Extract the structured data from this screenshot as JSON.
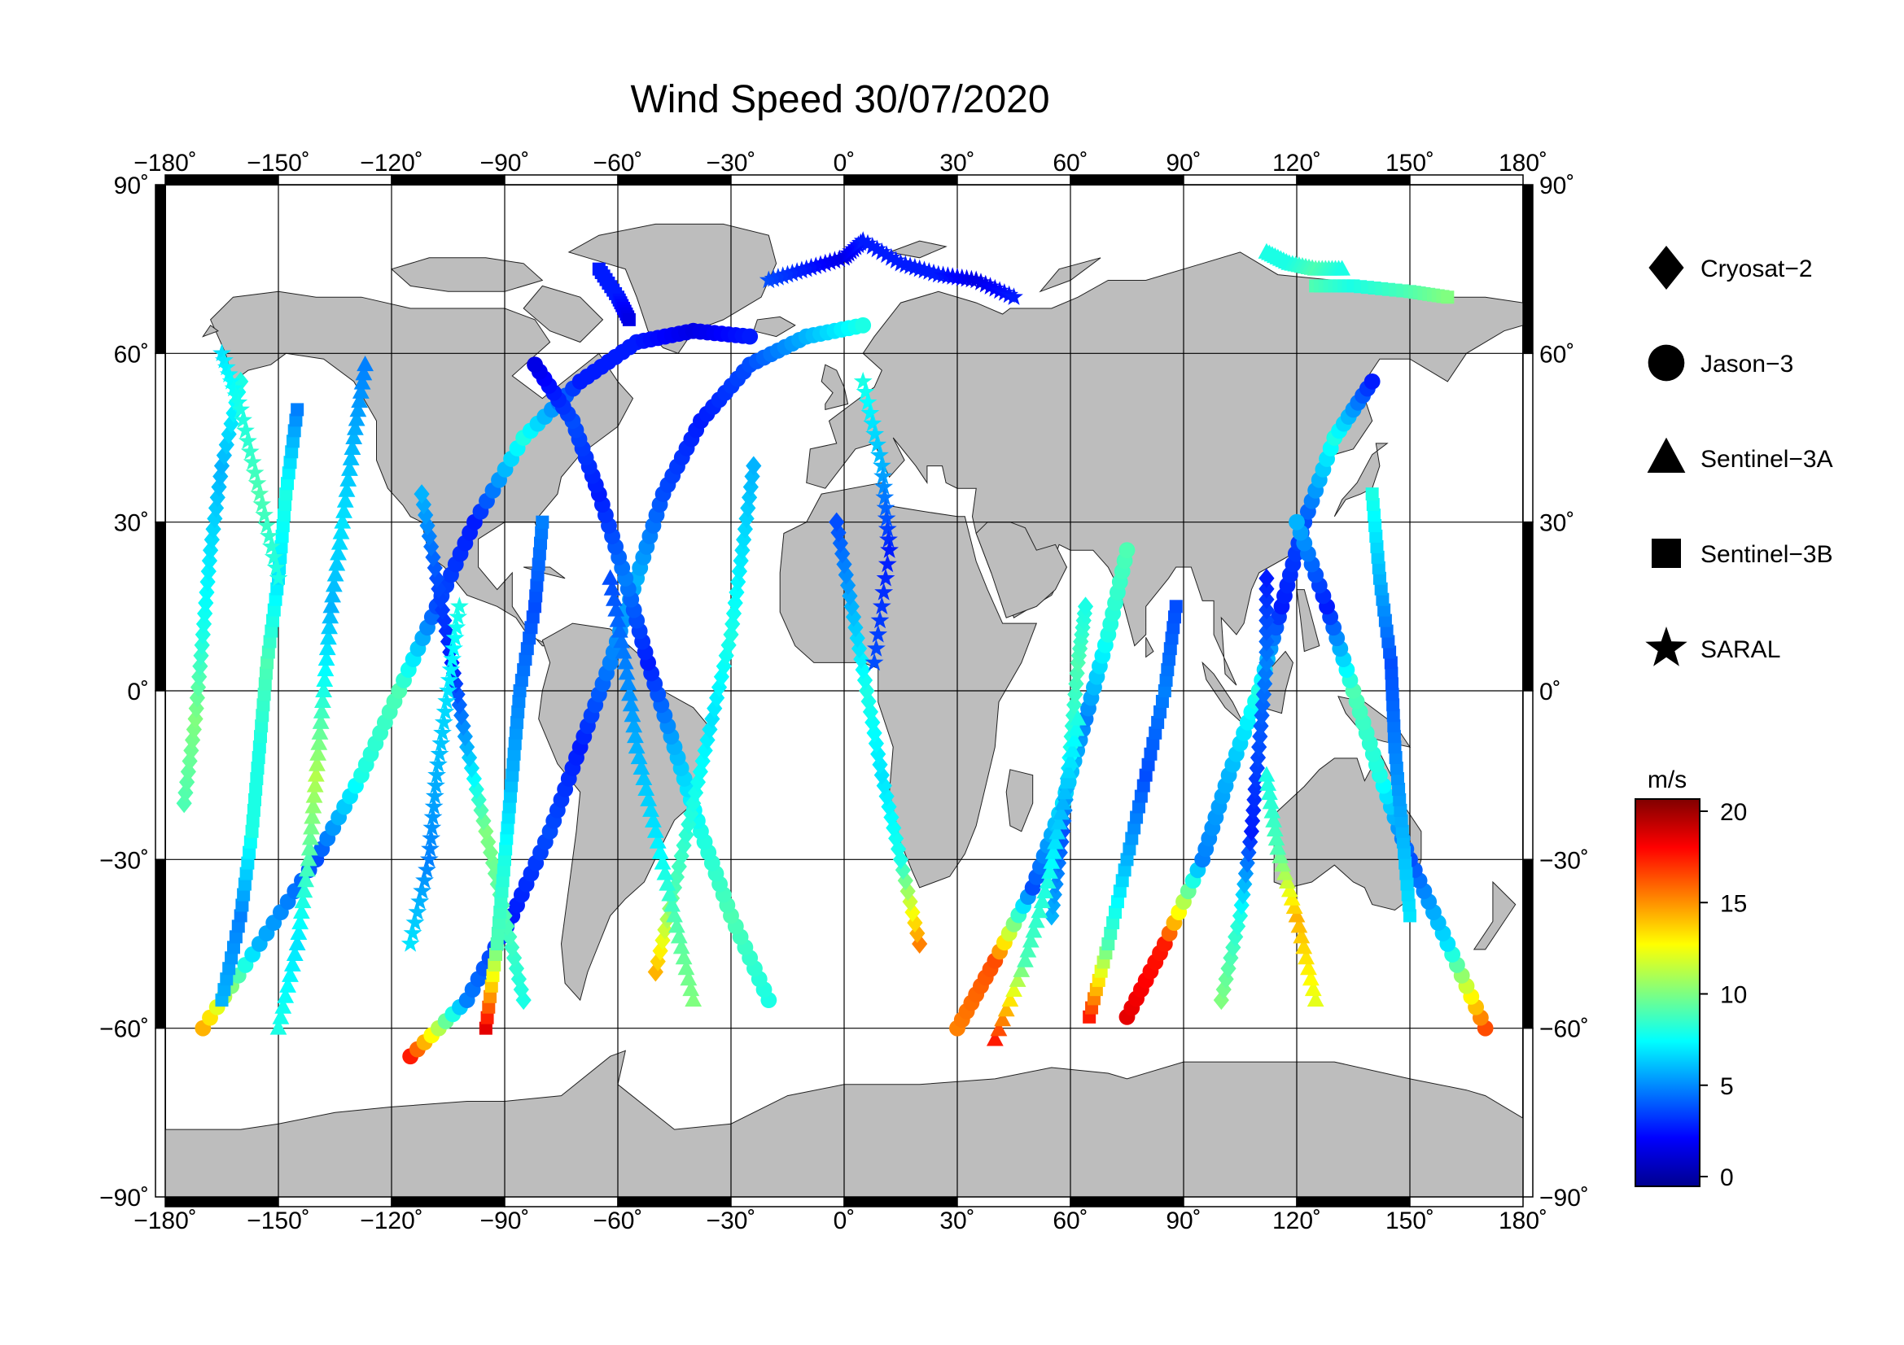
{
  "title": "Wind Speed 30/07/2020",
  "map": {
    "projection": "equirectangular",
    "lon_range": [
      -180,
      180
    ],
    "lat_range": [
      -90,
      90
    ],
    "land_color": "#bdbdbd",
    "ocean_color": "#ffffff",
    "grid_lon_step": 30,
    "grid_lat_step": 30
  },
  "axes": {
    "lon_ticks": [
      "−180˚",
      "−150˚",
      "−120˚",
      "−90˚",
      "−60˚",
      "−30˚",
      "0˚",
      "30˚",
      "60˚",
      "90˚",
      "120˚",
      "150˚",
      "180˚"
    ],
    "lat_ticks_left": [
      "90˚",
      "60˚",
      "30˚",
      "0˚",
      "−30˚",
      "−60˚",
      "−90˚"
    ],
    "lat_ticks_right": [
      "90˚",
      "60˚",
      "30˚",
      "0˚",
      "−30˚",
      "−60˚",
      "−90˚"
    ]
  },
  "legend": {
    "items": [
      {
        "label": "Cryosat−2",
        "icon": "diamond-icon"
      },
      {
        "label": "Jason−3",
        "icon": "circle-icon"
      },
      {
        "label": "Sentinel−3A",
        "icon": "triangle-icon"
      },
      {
        "label": "Sentinel−3B",
        "icon": "square-icon"
      },
      {
        "label": "SARAL",
        "icon": "star-icon"
      }
    ]
  },
  "colorbar": {
    "unit": "m/s",
    "min": 0,
    "max": 20,
    "ticks": [
      "20",
      "15",
      "10",
      "5",
      "0"
    ],
    "colormap": "jet"
  },
  "chart_data": {
    "type": "scatter",
    "title": "Wind Speed 30/07/2020",
    "xlim": [
      -180,
      180
    ],
    "ylim": [
      -90,
      90
    ],
    "value_unit": "m/s",
    "value_range": [
      0,
      20
    ],
    "tracks": [
      {
        "sensor": "Jason−3",
        "points": [
          [
            -170,
            -60,
            14
          ],
          [
            -155,
            -45,
            6
          ],
          [
            -140,
            -30,
            4
          ],
          [
            -128,
            -15,
            8
          ],
          [
            -118,
            0,
            9
          ],
          [
            -108,
            15,
            4
          ],
          [
            -98,
            30,
            3
          ],
          [
            -85,
            45,
            8
          ],
          [
            -70,
            55,
            3
          ],
          [
            -55,
            62,
            3
          ],
          [
            -40,
            64,
            2
          ],
          [
            -25,
            63,
            3
          ]
        ]
      },
      {
        "sensor": "Jason−3",
        "points": [
          [
            -115,
            -65,
            17
          ],
          [
            -100,
            -55,
            5
          ],
          [
            -88,
            -40,
            3
          ],
          [
            -78,
            -25,
            4
          ],
          [
            -70,
            -10,
            3
          ],
          [
            -62,
            5,
            5
          ],
          [
            -55,
            20,
            6
          ],
          [
            -48,
            35,
            4
          ],
          [
            -38,
            48,
            3
          ],
          [
            -25,
            58,
            4
          ],
          [
            -10,
            63,
            6
          ],
          [
            5,
            65,
            8
          ]
        ]
      },
      {
        "sensor": "Jason−3",
        "points": [
          [
            -20,
            -55,
            8
          ],
          [
            -30,
            -40,
            9
          ],
          [
            -38,
            -25,
            8
          ],
          [
            -45,
            -10,
            6
          ],
          [
            -52,
            5,
            3
          ],
          [
            -58,
            20,
            5
          ],
          [
            -65,
            35,
            3
          ],
          [
            -72,
            48,
            4
          ],
          [
            -82,
            58,
            2
          ]
        ]
      },
      {
        "sensor": "Jason−3",
        "points": [
          [
            30,
            -60,
            15
          ],
          [
            40,
            -48,
            16
          ],
          [
            50,
            -35,
            4
          ],
          [
            58,
            -20,
            7
          ],
          [
            64,
            -5,
            5
          ],
          [
            70,
            10,
            8
          ],
          [
            75,
            25,
            9
          ]
        ]
      },
      {
        "sensor": "Jason−3",
        "points": [
          [
            75,
            -58,
            18
          ],
          [
            85,
            -45,
            17
          ],
          [
            95,
            -30,
            5
          ],
          [
            102,
            -15,
            6
          ],
          [
            110,
            0,
            8
          ],
          [
            116,
            15,
            3
          ],
          [
            122,
            30,
            4
          ],
          [
            130,
            45,
            8
          ],
          [
            140,
            55,
            3
          ]
        ]
      },
      {
        "sensor": "Jason−3",
        "points": [
          [
            170,
            -60,
            16
          ],
          [
            160,
            -45,
            7
          ],
          [
            150,
            -30,
            4
          ],
          [
            142,
            -15,
            8
          ],
          [
            135,
            0,
            9
          ],
          [
            128,
            15,
            3
          ],
          [
            120,
            30,
            6
          ]
        ]
      },
      {
        "sensor": "Cryosat−2",
        "points": [
          [
            -175,
            -20,
            9
          ],
          [
            -172,
            -5,
            10
          ],
          [
            -170,
            10,
            8
          ],
          [
            -168,
            25,
            7
          ],
          [
            -165,
            40,
            6
          ],
          [
            -160,
            55,
            8
          ]
        ]
      },
      {
        "sensor": "Cryosat−2",
        "points": [
          [
            -85,
            -55,
            8
          ],
          [
            -90,
            -40,
            9
          ],
          [
            -95,
            -25,
            10
          ],
          [
            -100,
            -10,
            6
          ],
          [
            -104,
            5,
            3
          ],
          [
            -108,
            20,
            4
          ],
          [
            -112,
            35,
            6
          ]
        ]
      },
      {
        "sensor": "Cryosat−2",
        "points": [
          [
            -50,
            -50,
            14
          ],
          [
            -45,
            -35,
            9
          ],
          [
            -40,
            -20,
            8
          ],
          [
            -35,
            -5,
            7
          ],
          [
            -30,
            10,
            8
          ],
          [
            -27,
            25,
            7
          ],
          [
            -24,
            40,
            6
          ]
        ]
      },
      {
        "sensor": "Cryosat−2",
        "points": [
          [
            20,
            -45,
            15
          ],
          [
            15,
            -30,
            8
          ],
          [
            10,
            -15,
            7
          ],
          [
            6,
            0,
            8
          ],
          [
            2,
            15,
            6
          ],
          [
            -2,
            30,
            4
          ]
        ]
      },
      {
        "sensor": "Cryosat−2",
        "points": [
          [
            55,
            -40,
            6
          ],
          [
            58,
            -25,
            4
          ],
          [
            60,
            -10,
            8
          ],
          [
            62,
            5,
            9
          ],
          [
            64,
            15,
            8
          ]
        ]
      },
      {
        "sensor": "Cryosat−2",
        "points": [
          [
            100,
            -55,
            10
          ],
          [
            105,
            -40,
            8
          ],
          [
            108,
            -25,
            3
          ],
          [
            110,
            -10,
            4
          ],
          [
            112,
            5,
            5
          ],
          [
            112,
            20,
            3
          ]
        ]
      },
      {
        "sensor": "Sentinel−3A",
        "points": [
          [
            -150,
            -60,
            8
          ],
          [
            -145,
            -45,
            7
          ],
          [
            -142,
            -30,
            9
          ],
          [
            -140,
            -15,
            11
          ],
          [
            -138,
            0,
            8
          ],
          [
            -136,
            15,
            6
          ],
          [
            -133,
            30,
            7
          ],
          [
            -130,
            45,
            6
          ],
          [
            -127,
            58,
            5
          ]
        ]
      },
      {
        "sensor": "Sentinel−3A",
        "points": [
          [
            -40,
            -55,
            10
          ],
          [
            -45,
            -40,
            9
          ],
          [
            -50,
            -25,
            7
          ],
          [
            -55,
            -10,
            6
          ],
          [
            -58,
            5,
            5
          ],
          [
            -62,
            20,
            4
          ]
        ]
      },
      {
        "sensor": "Sentinel−3A",
        "points": [
          [
            40,
            -62,
            17
          ],
          [
            48,
            -48,
            9
          ],
          [
            54,
            -34,
            8
          ],
          [
            58,
            -20,
            6
          ],
          [
            62,
            -5,
            8
          ]
        ]
      },
      {
        "sensor": "Sentinel−3A",
        "points": [
          [
            125,
            -55,
            12
          ],
          [
            120,
            -40,
            14
          ],
          [
            115,
            -28,
            9
          ],
          [
            112,
            -15,
            8
          ]
        ]
      },
      {
        "sensor": "Sentinel−3A",
        "points": [
          [
            112,
            78,
            8
          ],
          [
            118,
            76,
            8
          ],
          [
            125,
            75,
            9
          ],
          [
            132,
            75,
            8
          ]
        ]
      },
      {
        "sensor": "Sentinel−3B",
        "points": [
          [
            -165,
            -55,
            6
          ],
          [
            -160,
            -40,
            5
          ],
          [
            -157,
            -25,
            8
          ],
          [
            -155,
            -10,
            8
          ],
          [
            -153,
            5,
            9
          ],
          [
            -150,
            20,
            7
          ],
          [
            -148,
            35,
            8
          ],
          [
            -145,
            50,
            5
          ]
        ]
      },
      {
        "sensor": "Sentinel−3B",
        "points": [
          [
            -95,
            -60,
            18
          ],
          [
            -92,
            -45,
            9
          ],
          [
            -90,
            -30,
            8
          ],
          [
            -88,
            -15,
            6
          ],
          [
            -86,
            0,
            5
          ],
          [
            -82,
            15,
            4
          ],
          [
            -80,
            30,
            5
          ]
        ]
      },
      {
        "sensor": "Sentinel−3B",
        "points": [
          [
            -65,
            75,
            3
          ],
          [
            -60,
            70,
            3
          ],
          [
            -57,
            66,
            2
          ]
        ]
      },
      {
        "sensor": "Sentinel−3B",
        "points": [
          [
            65,
            -58,
            17
          ],
          [
            70,
            -45,
            9
          ],
          [
            75,
            -30,
            6
          ],
          [
            80,
            -15,
            4
          ],
          [
            85,
            0,
            5
          ],
          [
            88,
            15,
            4
          ]
        ]
      },
      {
        "sensor": "Sentinel−3B",
        "points": [
          [
            150,
            -40,
            7
          ],
          [
            148,
            -25,
            6
          ],
          [
            146,
            -10,
            5
          ],
          [
            145,
            5,
            4
          ],
          [
            142,
            20,
            6
          ],
          [
            140,
            35,
            8
          ]
        ]
      },
      {
        "sensor": "Sentinel−3B",
        "points": [
          [
            125,
            72,
            9
          ],
          [
            135,
            72,
            8
          ],
          [
            150,
            71,
            9
          ],
          [
            160,
            70,
            10
          ]
        ]
      },
      {
        "sensor": "SARAL",
        "points": [
          [
            -20,
            73,
            4
          ],
          [
            -10,
            75,
            3
          ],
          [
            0,
            77,
            2
          ],
          [
            5,
            80,
            3
          ],
          [
            15,
            76,
            3
          ],
          [
            25,
            74,
            3
          ],
          [
            35,
            73,
            2
          ],
          [
            45,
            70,
            3
          ]
        ]
      },
      {
        "sensor": "SARAL",
        "points": [
          [
            -115,
            -45,
            7
          ],
          [
            -110,
            -30,
            5
          ],
          [
            -108,
            -15,
            6
          ],
          [
            -105,
            0,
            7
          ],
          [
            -102,
            15,
            8
          ]
        ]
      },
      {
        "sensor": "SARAL",
        "points": [
          [
            -165,
            60,
            7
          ],
          [
            -160,
            50,
            8
          ],
          [
            -155,
            35,
            9
          ],
          [
            -150,
            20,
            8
          ]
        ]
      },
      {
        "sensor": "SARAL",
        "points": [
          [
            5,
            55,
            8
          ],
          [
            10,
            40,
            6
          ],
          [
            12,
            25,
            3
          ],
          [
            8,
            5,
            4
          ]
        ]
      }
    ]
  }
}
